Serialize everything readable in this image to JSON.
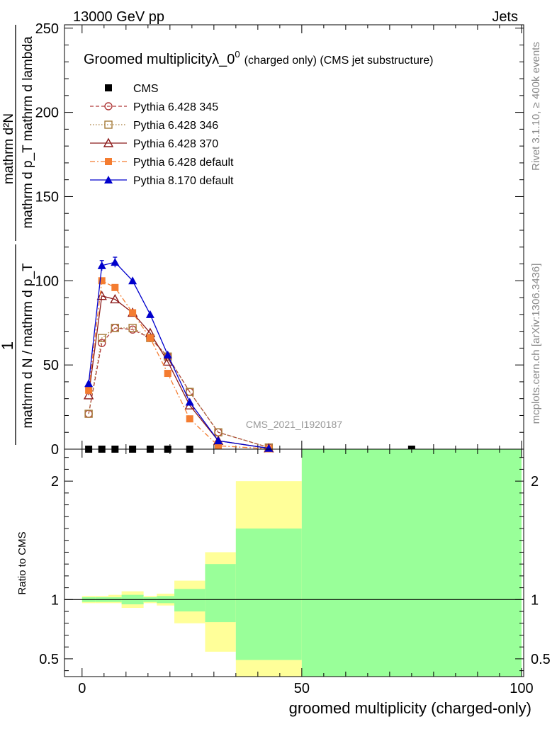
{
  "header": {
    "energy_label": "13000 GeV pp",
    "category_label": "Jets"
  },
  "side_notes": {
    "rivet": "Rivet 3.1.10, ≥ 400k events",
    "mcplots": "mcplots.cern.ch [arXiv:1306.3436]"
  },
  "colors": {
    "cms": "#000000",
    "p345": "#b03a3a",
    "p346": "#a67c3a",
    "p370": "#8b1a1a",
    "p6def": "#f47c30",
    "p8def": "#0000cc",
    "band_inner": "#99ff99",
    "band_outer": "#ffff99"
  },
  "chart_data": [
    {
      "type": "line",
      "title": "Groomed multiplicityλ_0",
      "title_sup": "0",
      "title_suffix": "(charged only) (CMS jet substructure)",
      "ylabel_num": "1",
      "ylabel_den": "mathrm d N / mathrm d p_T",
      "ylabel_right_num": "mathrm d²N",
      "ylabel_right_den": "mathrm d p_T mathrm d lambda",
      "xlim": [
        -4,
        100.5
      ],
      "ylim": [
        0,
        252
      ],
      "y_ticks": [
        0,
        50,
        100,
        150,
        200,
        250
      ],
      "watermark": "CMS_2021_I1920187",
      "series": [
        {
          "name": "CMS",
          "key": "cms",
          "marker": "square-filled",
          "line": "none",
          "x": [
            1.5,
            4.5,
            7.5,
            11.5,
            15.5,
            19.5,
            24.5,
            75
          ],
          "values": [
            0,
            0,
            0,
            0,
            0,
            0,
            0,
            0
          ]
        },
        {
          "name": "Pythia 6.428 345",
          "key": "p345",
          "marker": "circle-open",
          "line": "dashed",
          "x": [
            1.5,
            4.5,
            7.5,
            11.5,
            15.5,
            19.5,
            24.5,
            31,
            42.5
          ],
          "values": [
            21,
            63,
            72,
            71,
            66,
            55,
            34,
            10,
            1
          ]
        },
        {
          "name": "Pythia 6.428 346",
          "key": "p346",
          "marker": "square-open",
          "line": "dotted",
          "x": [
            1.5,
            4.5,
            7.5,
            11.5,
            15.5,
            19.5,
            24.5,
            31,
            42.5
          ],
          "values": [
            21,
            66,
            72,
            72,
            66,
            55,
            34,
            10,
            1
          ]
        },
        {
          "name": "Pythia 6.428 370",
          "key": "p370",
          "marker": "triangle-open",
          "line": "solid",
          "x": [
            1.5,
            4.5,
            7.5,
            11.5,
            15.5,
            19.5,
            24.5,
            31,
            42.5
          ],
          "values": [
            32,
            91,
            89,
            81,
            69,
            52,
            26,
            5,
            0.5
          ]
        },
        {
          "name": "Pythia 6.428 default",
          "key": "p6def",
          "marker": "square-filled",
          "line": "dashdot",
          "x": [
            1.5,
            4.5,
            7.5,
            11.5,
            15.5,
            19.5,
            24.5,
            31,
            42.5
          ],
          "values": [
            35,
            100,
            96,
            81,
            66,
            45,
            18,
            2,
            0.2
          ]
        },
        {
          "name": "Pythia 8.170 default",
          "key": "p8def",
          "marker": "triangle-filled",
          "line": "solid",
          "x": [
            1.5,
            4.5,
            7.5,
            11.5,
            15.5,
            19.5,
            24.5,
            31,
            42.5
          ],
          "values": [
            39,
            109,
            111,
            100,
            80,
            56,
            28,
            5,
            0.5
          ]
        }
      ]
    },
    {
      "type": "area",
      "ylabel": "Ratio to CMS",
      "xlabel": "groomed multiplicity (charged-only)",
      "xlim": [
        -4,
        100.5
      ],
      "ylim": [
        0.35,
        2.27
      ],
      "y_ticks": [
        0.5,
        1,
        2
      ],
      "x_ticks": [
        0,
        50,
        100
      ],
      "reference_line": 1,
      "bins": [
        {
          "lo": 0,
          "hi": 3,
          "inner": [
            0.98,
            1.02
          ],
          "outer": [
            0.97,
            1.03
          ]
        },
        {
          "lo": 3,
          "hi": 6,
          "inner": [
            0.98,
            1.02
          ],
          "outer": [
            0.97,
            1.03
          ]
        },
        {
          "lo": 6,
          "hi": 9,
          "inner": [
            0.98,
            1.02
          ],
          "outer": [
            0.97,
            1.04
          ]
        },
        {
          "lo": 9,
          "hi": 14,
          "inner": [
            0.96,
            1.04
          ],
          "outer": [
            0.93,
            1.07
          ]
        },
        {
          "lo": 14,
          "hi": 17,
          "inner": [
            0.98,
            1.02
          ],
          "outer": [
            0.97,
            1.03
          ]
        },
        {
          "lo": 17,
          "hi": 21,
          "inner": [
            0.97,
            1.03
          ],
          "outer": [
            0.95,
            1.05
          ]
        },
        {
          "lo": 21,
          "hi": 28,
          "inner": [
            0.9,
            1.09
          ],
          "outer": [
            0.8,
            1.16
          ]
        },
        {
          "lo": 28,
          "hi": 35,
          "inner": [
            0.81,
            1.3
          ],
          "outer": [
            0.56,
            1.4
          ]
        },
        {
          "lo": 35,
          "hi": 50,
          "inner": [
            0.49,
            1.6
          ],
          "outer": [
            0.35,
            2.0
          ]
        },
        {
          "lo": 50,
          "hi": 100,
          "inner": [
            0.35,
            2.27
          ],
          "outer": [
            0.35,
            2.27
          ]
        }
      ]
    }
  ]
}
